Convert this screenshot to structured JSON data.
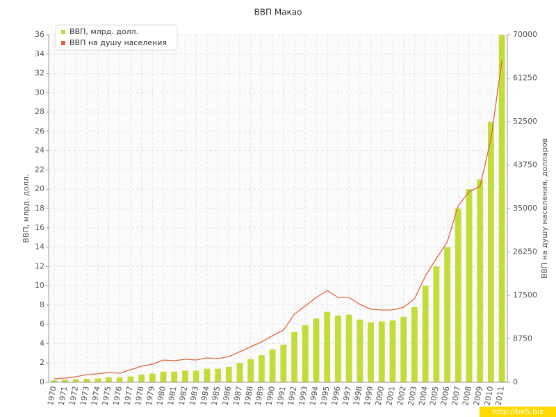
{
  "chart_data": {
    "type": "bar_line",
    "title": "ВВП Макао",
    "y_label": "ВВП, млрд. долл.",
    "y2_label": "ВВП на душу населения, долларов",
    "categories": [
      "1970",
      "1971",
      "1972",
      "1973",
      "1974",
      "1975",
      "1976",
      "1977",
      "1978",
      "1979",
      "1980",
      "1981",
      "1982",
      "1983",
      "1984",
      "1985",
      "1986",
      "1987",
      "1988",
      "1989",
      "1990",
      "1991",
      "1992",
      "1993",
      "1994",
      "1995",
      "1996",
      "1997",
      "1998",
      "1999",
      "2000",
      "2001",
      "2002",
      "2003",
      "2004",
      "2005",
      "2006",
      "2007",
      "2008",
      "2009",
      "2010",
      "2011"
    ],
    "series": [
      {
        "name": "ВВП, млрд. долл.",
        "color": "#c2dc3a",
        "type": "bar",
        "values": [
          0.2,
          0.25,
          0.3,
          0.35,
          0.4,
          0.5,
          0.5,
          0.6,
          0.8,
          0.9,
          1.1,
          1.1,
          1.2,
          1.2,
          1.4,
          1.4,
          1.6,
          2.0,
          2.4,
          2.8,
          3.4,
          3.9,
          5.2,
          5.9,
          6.6,
          7.3,
          6.9,
          7.0,
          6.5,
          6.2,
          6.3,
          6.4,
          6.8,
          7.8,
          10.0,
          12.0,
          14.0,
          18.0,
          20.0,
          21.0,
          27.0,
          36.0
        ]
      },
      {
        "name": "ВВП на душу населения",
        "color": "#e0643c",
        "type": "line",
        "axis": "y2",
        "values": [
          700,
          840,
          1120,
          1540,
          1700,
          1960,
          1820,
          2520,
          3220,
          3640,
          4480,
          4340,
          4620,
          4480,
          4900,
          4760,
          5180,
          6160,
          7140,
          8120,
          9380,
          10500,
          13720,
          15400,
          17080,
          18480,
          17080,
          17080,
          15680,
          14700,
          14560,
          14560,
          15120,
          16800,
          21420,
          24920,
          28280,
          35560,
          38360,
          39480,
          49000,
          64820
        ]
      }
    ],
    "ylim": [
      0,
      36
    ],
    "yticks": [
      0,
      2,
      4,
      6,
      8,
      10,
      12,
      14,
      16,
      18,
      20,
      22,
      24,
      26,
      28,
      30,
      32,
      34,
      36
    ],
    "y2lim": [
      0,
      70000
    ],
    "y2ticks": [
      0,
      8750,
      17500,
      26250,
      35000,
      43750,
      52500,
      61250,
      70000
    ],
    "grid": true,
    "legend": "top-left",
    "watermark": "http://be5.biz"
  }
}
